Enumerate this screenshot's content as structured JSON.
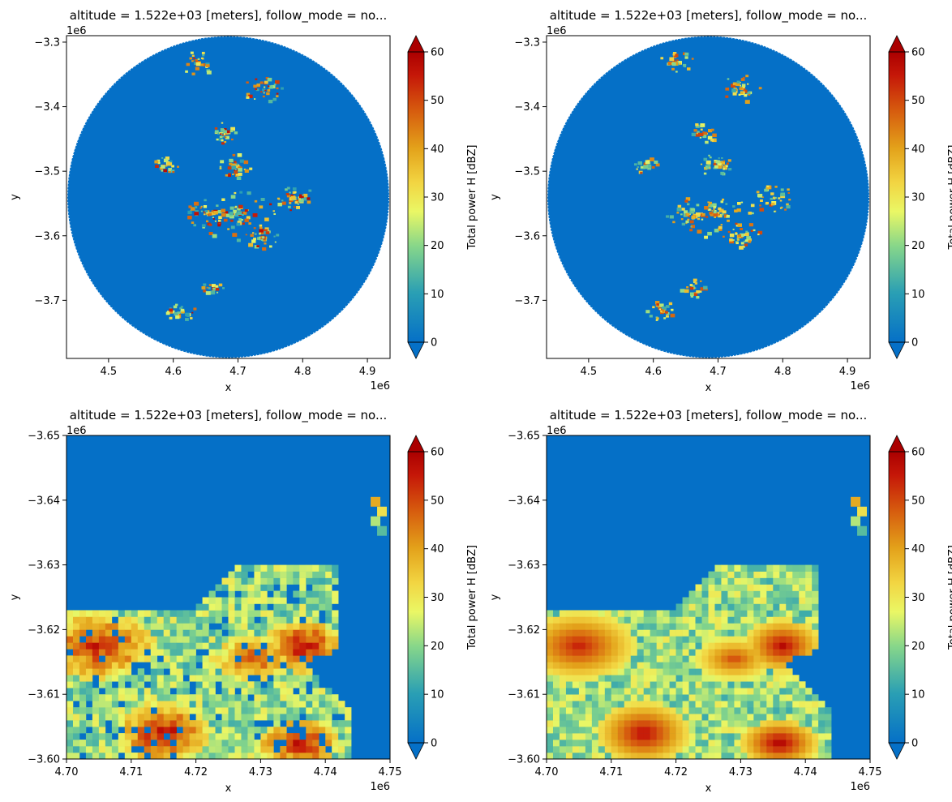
{
  "colorbar": {
    "label": "Total power H [dBZ]",
    "ticks": [
      "0",
      "10",
      "20",
      "30",
      "40",
      "50",
      "60"
    ],
    "vmin": 0,
    "vmax": 60,
    "extend": "both",
    "cmap": "jet-like (blue-green-yellow-red)"
  },
  "chart_data": [
    {
      "type": "heatmap",
      "title": "altitude = 1.522e+03 [meters], follow_mode = no...",
      "xlabel": "x",
      "ylabel": "y",
      "x_offset": "1e6",
      "y_offset": "1e6",
      "xlim": [
        4.435,
        4.935
      ],
      "ylim": [
        -3.79,
        -3.29
      ],
      "xticks": [
        "4.5",
        "4.6",
        "4.7",
        "4.8",
        "4.9"
      ],
      "yticks": [
        "−3.7",
        "−3.6",
        "−3.5",
        "−3.4",
        "−3.3"
      ],
      "background_value_dBZ": 0,
      "description": "circular radar scan, convective cells around the radar"
    },
    {
      "type": "heatmap",
      "title": "altitude = 1.522e+03 [meters], follow_mode = no...",
      "xlabel": "x",
      "ylabel": "y",
      "x_offset": "1e6",
      "y_offset": "1e6",
      "xlim": [
        4.435,
        4.935
      ],
      "ylim": [
        -3.79,
        -3.29
      ],
      "xticks": [
        "4.5",
        "4.6",
        "4.7",
        "4.8",
        "4.9"
      ],
      "yticks": [
        "−3.7",
        "−3.6",
        "−3.5",
        "−3.4",
        "−3.3"
      ],
      "background_value_dBZ": 0,
      "description": "circular radar scan, smoothed version"
    },
    {
      "type": "heatmap",
      "title": "altitude = 1.522e+03 [meters], follow_mode = no...",
      "xlabel": "x",
      "ylabel": "y",
      "x_offset": "1e6",
      "y_offset": "1e6",
      "xlim": [
        4.7,
        4.75
      ],
      "ylim": [
        -3.6,
        -3.65
      ],
      "xticks": [
        "4.70",
        "4.71",
        "4.72",
        "4.73",
        "4.74",
        "4.75"
      ],
      "yticks": [
        "−3.60",
        "−3.61",
        "−3.62",
        "−3.63",
        "−3.64",
        "−3.65"
      ],
      "background_value_dBZ": 0,
      "description": "zoomed gridded reflectivity, pixelated cells"
    },
    {
      "type": "heatmap",
      "title": "altitude = 1.522e+03 [meters], follow_mode = no...",
      "xlabel": "x",
      "ylabel": "y",
      "x_offset": "1e6",
      "y_offset": "1e6",
      "xlim": [
        4.7,
        4.75
      ],
      "ylim": [
        -3.6,
        -3.65
      ],
      "xticks": [
        "4.70",
        "4.71",
        "4.72",
        "4.73",
        "4.74",
        "4.75"
      ],
      "yticks": [
        "−3.60",
        "−3.61",
        "−3.62",
        "−3.63",
        "−3.64",
        "−3.65"
      ],
      "background_value_dBZ": 0,
      "description": "zoomed gridded reflectivity, smoothed"
    }
  ]
}
